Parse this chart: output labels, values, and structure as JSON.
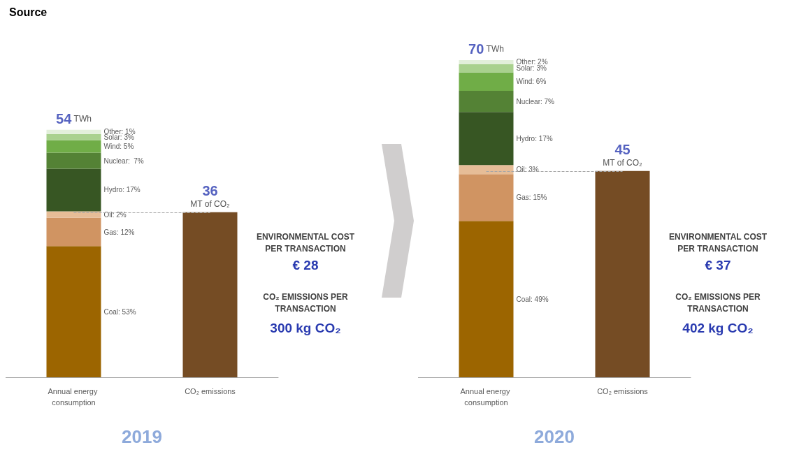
{
  "chart_data": [
    {
      "type": "bar",
      "title": "Source",
      "xlabel": "2019",
      "categories": [
        "Annual energy consumption",
        "CO₂ emissions"
      ],
      "stacked": true,
      "tick_labels": "x",
      "grid": false,
      "legend": false,
      "series": [
        {
          "name": "Coal: 53%",
          "color": "#9c6500",
          "values": [
            28.6,
            null
          ]
        },
        {
          "name": "Gas: 12%",
          "color": "#d09462",
          "values": [
            6.2,
            null
          ]
        },
        {
          "name": "Oil: 2%",
          "color": "#e6bd97",
          "values": [
            1.4,
            null
          ]
        },
        {
          "name": "Hydro: 17%",
          "color": "#375623",
          "values": [
            9.3,
            null
          ]
        },
        {
          "name": "Nuclear:  7%",
          "color": "#548235",
          "values": [
            3.5,
            null
          ]
        },
        {
          "name": "Wind: 5%",
          "color": "#70ad47",
          "values": [
            2.7,
            null
          ]
        },
        {
          "name": "Solar: 3%",
          "color": "#a9d18e",
          "values": [
            1.4,
            null
          ]
        },
        {
          "name": "Other: 1%",
          "color": "#e2efda",
          "values": [
            0.9,
            null
          ]
        },
        {
          "color": "#754c24",
          "values": [
            null,
            36
          ],
          "value_labels": [
            null,
            "36\nMT of CO₂"
          ]
        }
      ],
      "totals": [
        "54 TWh",
        null
      ],
      "ref_lines": [
        {
          "axis": "y",
          "value": 36,
          "color": "#a6a6a6",
          "line_style": "dashed"
        }
      ],
      "annotations": [
        "ENVIRONMENTAL COST\nPER TRANSACTION",
        "€ 28",
        "CO₂ EMISSIONS PER\nTRANSACTION",
        "300 kg CO₂"
      ]
    },
    {
      "type": "bar",
      "xlabel": "2020",
      "categories": [
        "Annual energy consumption",
        "CO₂ emissions"
      ],
      "stacked": true,
      "tick_labels": "x",
      "grid": false,
      "legend": false,
      "series": [
        {
          "name": "Coal: 49%",
          "color": "#9c6500",
          "values": [
            34.1,
            null
          ]
        },
        {
          "name": "Gas: 15%",
          "color": "#d09462",
          "values": [
            10.2,
            null
          ]
        },
        {
          "name": "Oil: 3%",
          "color": "#e6bd97",
          "values": [
            2.0,
            null
          ]
        },
        {
          "name": "Hydro: 17%",
          "color": "#375623",
          "values": [
            11.6,
            null
          ]
        },
        {
          "name": "Nuclear: 7%",
          "color": "#548235",
          "values": [
            4.6,
            null
          ]
        },
        {
          "name": "Wind: 6%",
          "color": "#70ad47",
          "values": [
            4.0,
            null
          ]
        },
        {
          "name": "Solar: 3%",
          "color": "#a9d18e",
          "values": [
            1.8,
            null
          ]
        },
        {
          "name": "Other: 2%",
          "color": "#e2efda",
          "values": [
            0.9,
            null
          ]
        },
        {
          "color": "#754c24",
          "values": [
            null,
            45
          ],
          "value_labels": [
            null,
            "45\nMT of CO₂"
          ]
        }
      ],
      "totals": [
        "70 TWh",
        null
      ],
      "ref_lines": [
        {
          "axis": "y",
          "value": 45,
          "color": "#a6a6a6",
          "line_style": "dashed"
        }
      ],
      "annotations": [
        "ENVIRONMENTAL COST\nPER TRANSACTION",
        "€ 37",
        "CO₂ EMISSIONS PER\nTRANSACTION",
        "402 kg CO₂"
      ]
    }
  ]
}
